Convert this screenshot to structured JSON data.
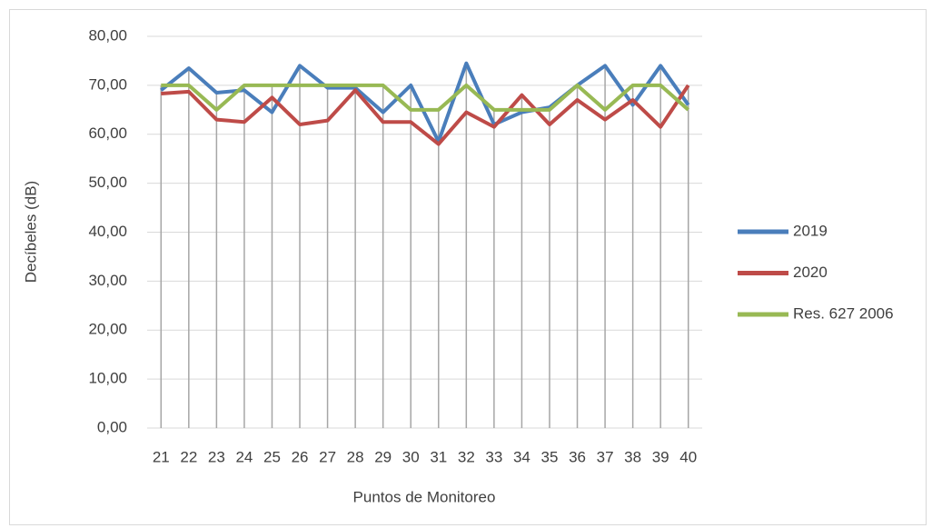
{
  "chart_data": {
    "type": "line",
    "y_label": "Decíbeles (dB)",
    "x_label": "Puntos de Monitoreo",
    "categories": [
      "21",
      "22",
      "23",
      "24",
      "25",
      "26",
      "27",
      "28",
      "29",
      "30",
      "31",
      "32",
      "33",
      "34",
      "35",
      "36",
      "37",
      "38",
      "39",
      "40"
    ],
    "series": [
      {
        "name": "2019",
        "color": "#4a7ebb",
        "values": [
          69,
          73.5,
          68.5,
          69,
          64.5,
          74,
          69.5,
          69.5,
          64.5,
          70,
          58.5,
          74.5,
          62,
          64.5,
          65.5,
          70,
          74,
          66,
          74,
          66
        ]
      },
      {
        "name": "2020",
        "color": "#be4b48",
        "values": [
          68.3,
          68.7,
          63,
          62.5,
          67.5,
          62,
          62.8,
          69,
          62.5,
          62.5,
          58,
          64.5,
          61.5,
          68,
          62,
          67,
          63,
          67,
          61.5,
          70
        ]
      },
      {
        "name": "Res. 627 2006",
        "color": "#98b954",
        "values": [
          70,
          70,
          65,
          70,
          70,
          70,
          70,
          70,
          70,
          65,
          65,
          70,
          65,
          65,
          65,
          70,
          65,
          70,
          70,
          65
        ]
      }
    ],
    "ylim": [
      0,
      80
    ],
    "yticks": [
      {
        "value": 0,
        "label": "0,00"
      },
      {
        "value": 10,
        "label": "10,00"
      },
      {
        "value": 20,
        "label": "20,00"
      },
      {
        "value": 30,
        "label": "30,00"
      },
      {
        "value": 40,
        "label": "40,00"
      },
      {
        "value": 50,
        "label": "50,00"
      },
      {
        "value": 60,
        "label": "60,00"
      },
      {
        "value": 70,
        "label": "70,00"
      },
      {
        "value": 80,
        "label": "80,00"
      }
    ],
    "grid": true,
    "drop_lines": true,
    "legend": "right"
  }
}
